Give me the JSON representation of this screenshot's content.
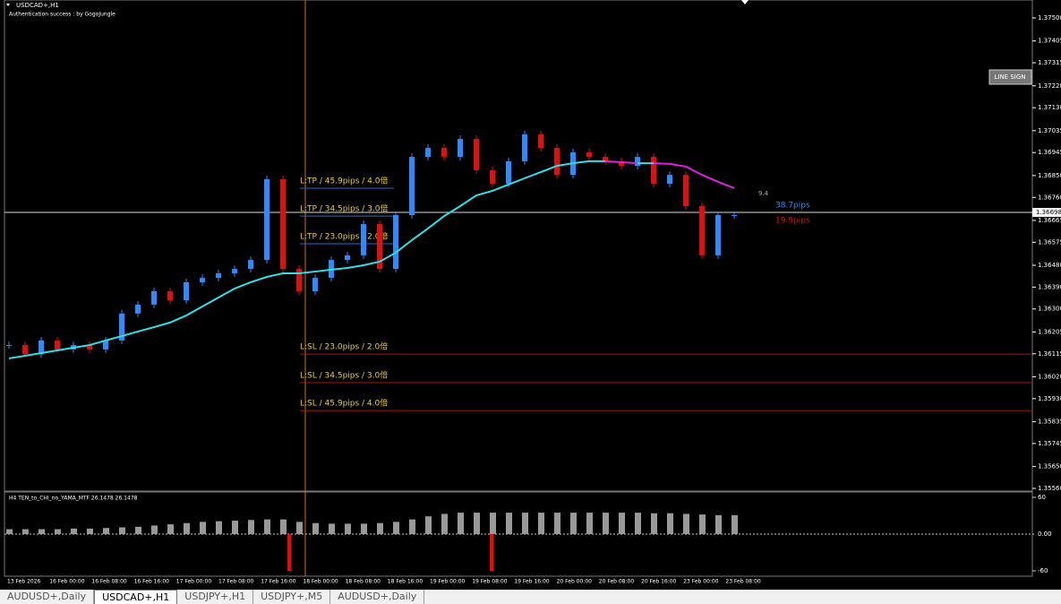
{
  "window": {
    "symbol_title": "USDCAD+,H1",
    "auth_text": "Authentication success : by GogoJungle",
    "button": "LINE SIGN"
  },
  "price_chart": {
    "ylim": [
      1.3556,
      1.375
    ],
    "yticks": [
      {
        "value": 1.375,
        "label": "1.37500"
      },
      1.37405,
      1.37315,
      {
        "value": 1.3722,
        "label": "1.37220"
      },
      {
        "value": 1.3713,
        "label": "1.37130"
      },
      1.37035,
      1.36945,
      {
        "value": 1.3685,
        "label": "1.36850"
      },
      {
        "value": 1.3676,
        "label": "1.36760"
      },
      1.36665,
      1.36575,
      {
        "value": 1.3648,
        "label": "1.36480"
      },
      {
        "value": 1.3639,
        "label": "1.36390"
      },
      {
        "value": 1.363,
        "label": "1.36300"
      },
      1.36205,
      1.36115,
      {
        "value": 1.3602,
        "label": "1.36020"
      },
      {
        "value": 1.3593,
        "label": "1.35930"
      },
      1.35835,
      1.35745,
      {
        "value": 1.3565,
        "label": "1.35650"
      },
      {
        "value": 1.3556,
        "label": "1.35560"
      }
    ],
    "current_price": 1.36698,
    "closes": [
      1.36151,
      1.36114,
      1.3617,
      1.36133,
      1.36151,
      1.36133,
      1.3617,
      1.36281,
      1.36318,
      1.36373,
      1.36336,
      1.3641,
      1.36428,
      1.36447,
      1.36465,
      1.36502,
      1.36835,
      1.36465,
      1.36373,
      1.36428,
      1.36502,
      1.36521,
      1.3665,
      1.36465,
      1.36687,
      1.36927,
      1.36964,
      1.36927,
      1.37001,
      1.36872,
      1.36816,
      1.36909,
      1.3702,
      1.36964,
      1.36853,
      1.36946,
      1.36927,
      1.36909,
      1.3689,
      1.36927,
      1.36816,
      1.36853,
      1.36724,
      1.36521,
      1.36687,
      1.36687
    ],
    "ma": [
      1.36096,
      1.36107,
      1.36118,
      1.36129,
      1.3614,
      1.36151,
      1.3617,
      1.36188,
      1.36207,
      1.36225,
      1.36244,
      1.36273,
      1.3631,
      1.36347,
      1.36384,
      1.3641,
      1.36432,
      1.36447,
      1.36447,
      1.36454,
      1.36462,
      1.36469,
      1.3648,
      1.36495,
      1.36532,
      1.36584,
      1.36632,
      1.36683,
      1.36724,
      1.36768,
      1.36787,
      1.36813,
      1.36839,
      1.36864,
      1.3689,
      1.36901,
      1.36909,
      1.36909,
      1.36905,
      1.36901,
      1.36901,
      1.36898,
      1.36887,
      1.36853,
      1.36824,
      1.36798
    ],
    "tp_levels": [
      {
        "label": "L:TP / 45.9pips / 4.0倍",
        "price": 1.36798
      },
      {
        "label": "L:TP / 34.5pips / 3.0倍",
        "price": 1.36683
      },
      {
        "label": "L:TP / 23.0pips / 2.0倍",
        "price": 1.36569
      }
    ],
    "sl_levels": [
      {
        "label": "L:SL / 23.0pips / 2.0倍",
        "price": 1.36114
      },
      {
        "label": "L:SL / 34.5pips / 3.0倍",
        "price": 1.35996
      },
      {
        "label": "L:SL / 45.9pips / 4.0倍",
        "price": 1.35881
      }
    ],
    "info": {
      "small": "9.4",
      "profit": "38.7pips",
      "loss": "19.9pips"
    },
    "xlabels": [
      "13 Feb 2026",
      "16 Feb 00:00",
      "16 Feb 08:00",
      "16 Feb 16:00",
      "17 Feb 00:00",
      "17 Feb 08:00",
      "17 Feb 16:00",
      "18 Feb 00:00",
      "18 Feb 08:00",
      "18 Feb 16:00",
      "19 Feb 00:00",
      "19 Feb 08:00",
      "19 Feb 16:00",
      "20 Feb 00:00",
      "20 Feb 08:00",
      "20 Feb 16:00",
      "23 Feb 00:00",
      "23 Feb 08:00"
    ]
  },
  "indicator": {
    "title": "H4  TEN_to_CHI_no_YAMA_MTF  26.1478 26.1478",
    "ylim": [
      -60,
      60
    ],
    "yticks": [
      60,
      {
        "value": 0,
        "label": "0.00"
      },
      -60
    ],
    "values": [
      8,
      8,
      8,
      8,
      9,
      9,
      10,
      11,
      12,
      14,
      16,
      18,
      20,
      21,
      22,
      23,
      24,
      24,
      20,
      18,
      17,
      17,
      17,
      18,
      20,
      24,
      29,
      33,
      35,
      35,
      35,
      35,
      35,
      35,
      35,
      35,
      35,
      35,
      35,
      35,
      34,
      34,
      33,
      32,
      31,
      31
    ],
    "signal": [
      null,
      null,
      null,
      null,
      null,
      null,
      null,
      null,
      null,
      null,
      null,
      null,
      null,
      null,
      null,
      null,
      null,
      null,
      -60,
      null,
      null,
      null,
      null,
      null,
      null,
      null,
      null,
      null,
      null,
      null,
      -60,
      null,
      null,
      null,
      null,
      null,
      null,
      null,
      null,
      null,
      null,
      null,
      null,
      null,
      null,
      null
    ]
  },
  "tabs": [
    "AUDUSD+,Daily",
    "USDCAD+,H1",
    "USDJPY+,H1",
    "USDJPY+,M5",
    "AUDUSD+,Daily"
  ]
}
